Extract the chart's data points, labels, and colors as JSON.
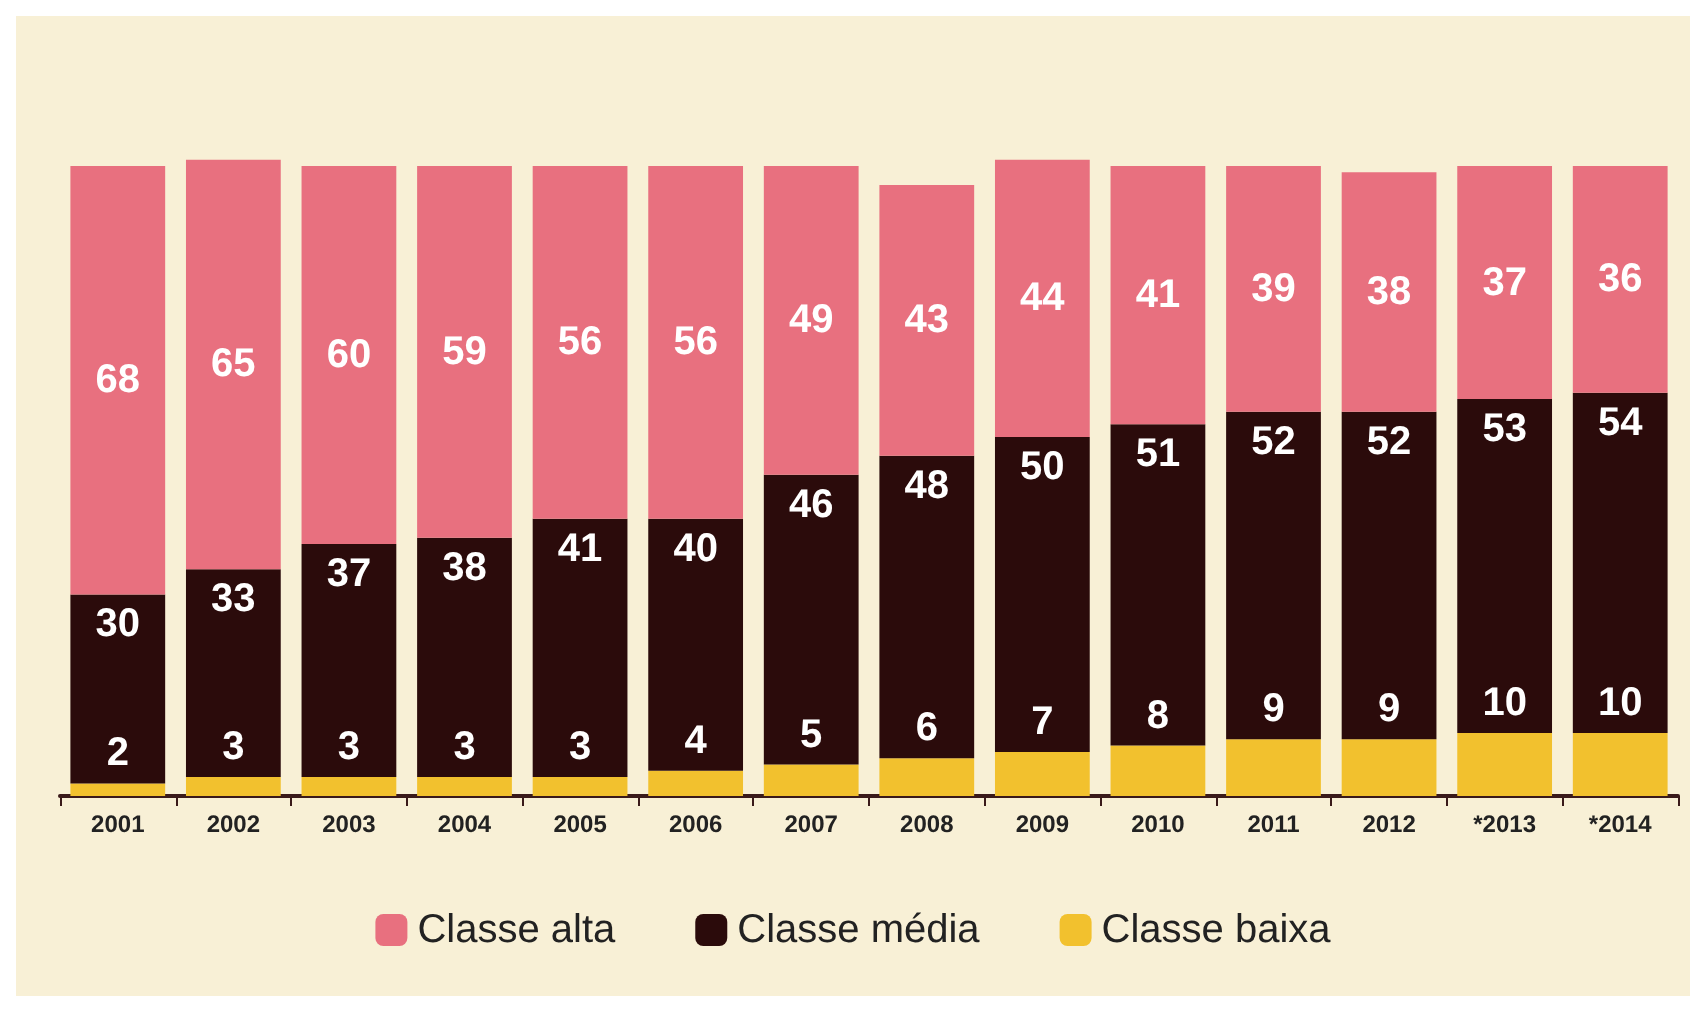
{
  "chart_data": {
    "type": "bar",
    "stacked": true,
    "data_labels": true,
    "legend": "bottom",
    "tick_labels": "x",
    "categories": [
      "2001",
      "2002",
      "2003",
      "2004",
      "2005",
      "2006",
      "2007",
      "2008",
      "2009",
      "2010",
      "2011",
      "2012",
      "*2013",
      "*2014"
    ],
    "series": [
      {
        "name": "Classe baixa",
        "color": "#f2c12e",
        "values": [
          2,
          3,
          3,
          3,
          3,
          4,
          5,
          6,
          7,
          8,
          9,
          9,
          10,
          10
        ]
      },
      {
        "name": "Classe média",
        "color": "#2b0b0b",
        "values": [
          30,
          33,
          37,
          38,
          41,
          40,
          46,
          48,
          50,
          51,
          52,
          52,
          53,
          54
        ]
      },
      {
        "name": "Classe alta",
        "color": "#e8707f",
        "values": [
          68,
          65,
          60,
          59,
          56,
          56,
          49,
          43,
          44,
          41,
          39,
          38,
          37,
          36
        ]
      }
    ]
  }
}
